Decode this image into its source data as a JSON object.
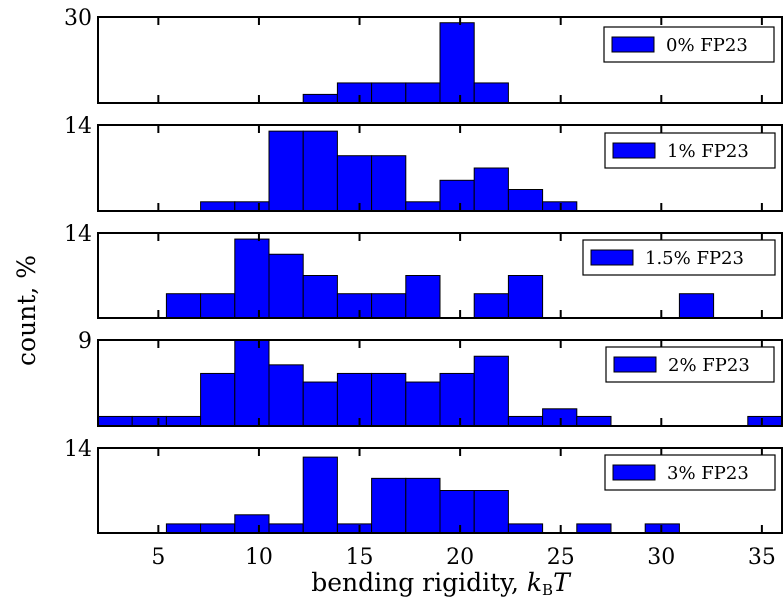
{
  "chart_data": {
    "type": "bar",
    "layout": "stacked-histograms",
    "xlabel_prefix": "bending rigidity, ",
    "xlabel_var": "k",
    "xlabel_sub": "B",
    "xlabel_var2": "T",
    "ylabel": "count, %",
    "xlim": [
      2,
      36
    ],
    "xticks": [
      5,
      10,
      15,
      20,
      25,
      30,
      35
    ],
    "bin_edges": [
      2,
      3.7,
      5.4,
      7.1,
      8.8,
      10.5,
      12.2,
      13.9,
      15.6,
      17.3,
      19.0,
      20.7,
      22.4,
      24.1,
      25.8,
      27.5,
      29.2,
      30.9,
      32.6,
      34.3,
      36.0
    ],
    "legend_position": "top-right",
    "color": "#0000ff",
    "panels": [
      {
        "name": "0% FP23",
        "ymax_label": "30",
        "ymax": 30,
        "values": [
          0,
          0,
          0,
          0,
          0,
          0,
          3,
          7,
          7,
          7,
          28,
          7,
          0,
          0,
          0,
          0,
          0,
          0,
          0,
          0
        ]
      },
      {
        "name": "1% FP23",
        "ymax_label": "14",
        "ymax": 14,
        "values": [
          0,
          0,
          0,
          1.5,
          1.5,
          13,
          13,
          9,
          9,
          1.5,
          5,
          7,
          3.5,
          1.5,
          0,
          0,
          0,
          0,
          0,
          0
        ]
      },
      {
        "name": "1.5% FP23",
        "ymax_label": "14",
        "ymax": 14,
        "values": [
          0,
          0,
          4,
          4,
          13,
          10.5,
          7,
          4,
          4,
          7,
          0,
          4,
          7,
          0,
          0,
          0,
          0,
          4,
          0,
          0
        ]
      },
      {
        "name": "2% FP23",
        "ymax_label": "9",
        "ymax": 9,
        "values": [
          1,
          1,
          1,
          5.5,
          9,
          6.4,
          4.6,
          5.5,
          5.5,
          4.6,
          5.5,
          7.3,
          1,
          1.8,
          1,
          0,
          0,
          0,
          0,
          1
        ]
      },
      {
        "name": "3% FP23",
        "ymax_label": "14",
        "ymax": 14,
        "values": [
          0,
          0,
          1.5,
          1.5,
          3,
          1.5,
          12.5,
          1.5,
          9,
          9,
          7,
          7,
          1.5,
          0,
          1.5,
          0,
          1.5,
          0,
          0,
          0
        ]
      }
    ]
  }
}
